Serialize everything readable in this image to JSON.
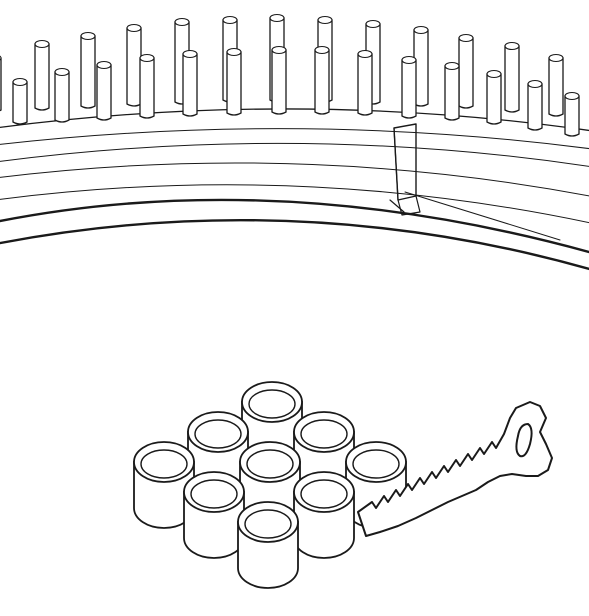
{
  "figure": {
    "background": "#ffffff",
    "stroke_color": "#1a1a1a",
    "parts": [
      {
        "id": "loom-ring",
        "kind": "circular-loom-with-pegs"
      },
      {
        "id": "gauge-clip",
        "kind": "slider-clip-on-loom"
      },
      {
        "id": "spacer-set",
        "kind": "cylindrical-spacers",
        "count": 9
      },
      {
        "id": "hook-tool",
        "kind": "serrated-hook-tool"
      }
    ]
  }
}
